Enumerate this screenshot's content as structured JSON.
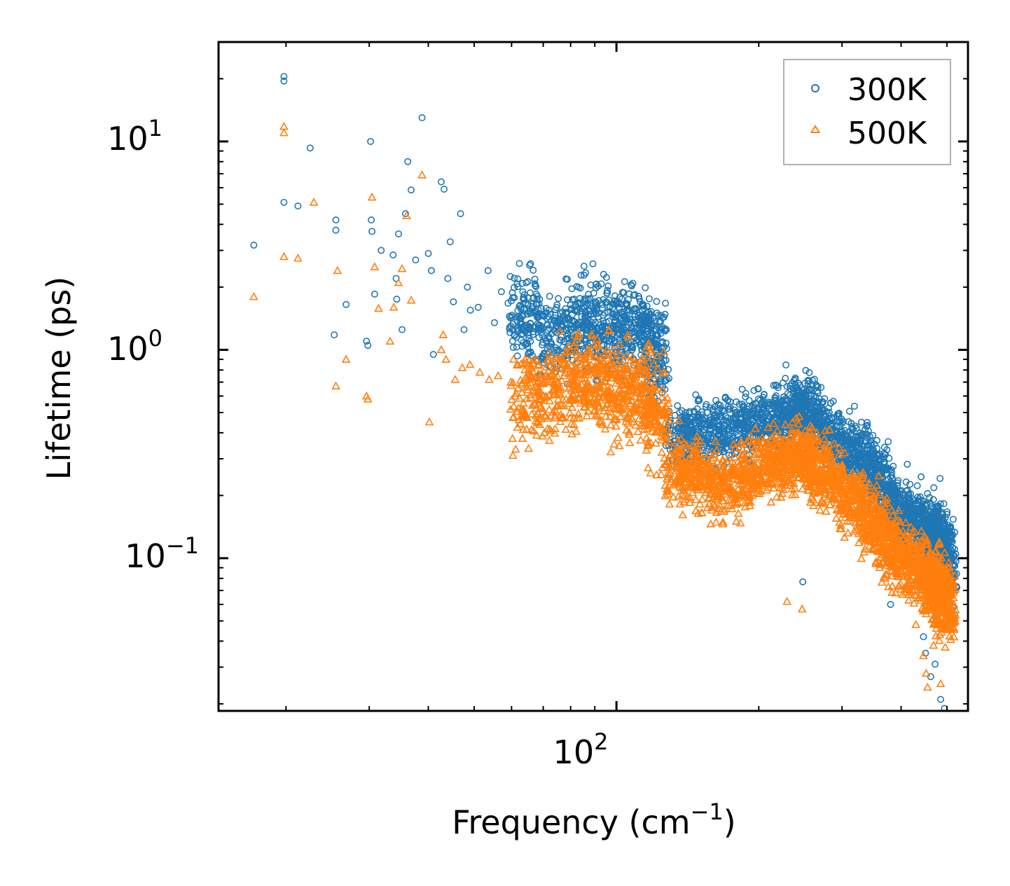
{
  "chart_data": {
    "type": "scatter",
    "xscale": "log",
    "yscale": "log",
    "xlabel": "Frequency (cm",
    "xlabel_sup": "−1",
    "xlabel_close": ")",
    "ylabel": "Lifetime (ps)",
    "xlim": [
      14.4,
      554
    ],
    "ylim": [
      0.0185,
      30
    ],
    "xtick_labels": [
      {
        "base": "10",
        "exp": "2",
        "value": 100
      }
    ],
    "ytick_labels": [
      {
        "base": "10",
        "exp": "1",
        "value": 10
      },
      {
        "base": "10",
        "exp": "0",
        "value": 1
      },
      {
        "base": "10",
        "exp": "−1",
        "value": 0.1
      }
    ],
    "legend": {
      "position": "top-right"
    },
    "series": [
      {
        "name": "300K",
        "color": "#1f77b4",
        "marker": "circle-open",
        "x": [
          17.1,
          19.8,
          19.8,
          19.8,
          21.2,
          22.5,
          25.3,
          25.5,
          25.5,
          26.8,
          29.6,
          29.8,
          30.2,
          30.3,
          30.4,
          30.8,
          31.8,
          33.7,
          34.2,
          34.3,
          34.6,
          35.2,
          35.8,
          36.2,
          36.8,
          37.6,
          38.8,
          40.0,
          40.6,
          41.0,
          42.6,
          43.2,
          44.0,
          44.5,
          45.2,
          46.8,
          47.6,
          48.4,
          49.1,
          51.0,
          53.5,
          55.2,
          57.1,
          59.4,
          62.3,
          65.0,
          68.3,
          73.0,
          78.4,
          82.6,
          86.1,
          90.4,
          94.6,
          99.2,
          103.5,
          108.0,
          113.6,
          118.2,
          120.8,
          122.1,
          134.5,
          142.6,
          151.0,
          160.2,
          170.4,
          182.0,
          194.3,
          205.1,
          216.2,
          226.8,
          238.4,
          246.1,
          252.5,
          260.3,
          271.4,
          284.3,
          298.6,
          313.1,
          327.4,
          340.2,
          352.1,
          365.0,
          378.4,
          390.2,
          402.5,
          418.2,
          432.1,
          446.3,
          458.0,
          466.2,
          472.0,
          478.5,
          484.0,
          487.5,
          491.0,
          493.8,
          496.0
        ],
        "y": [
          3.18,
          20.5,
          19.5,
          5.1,
          4.9,
          9.3,
          1.18,
          4.2,
          3.75,
          1.65,
          1.1,
          1.05,
          10.0,
          4.2,
          3.7,
          1.85,
          3.0,
          2.85,
          2.2,
          1.75,
          3.6,
          1.25,
          4.5,
          8.0,
          5.85,
          2.7,
          13.0,
          2.9,
          2.4,
          0.95,
          6.4,
          5.9,
          2.2,
          3.3,
          1.7,
          4.5,
          1.25,
          2.0,
          1.55,
          1.6,
          2.4,
          1.35,
          1.9,
          1.45,
          1.62,
          1.78,
          1.48,
          1.32,
          1.42,
          1.55,
          1.35,
          1.62,
          1.5,
          1.38,
          1.45,
          1.55,
          1.4,
          1.3,
          1.25,
          0.92,
          0.42,
          0.45,
          0.47,
          0.46,
          0.48,
          0.49,
          0.51,
          0.52,
          0.53,
          0.55,
          0.58,
          0.62,
          0.63,
          0.55,
          0.5,
          0.44,
          0.41,
          0.39,
          0.37,
          0.33,
          0.3,
          0.26,
          0.22,
          0.2,
          0.19,
          0.18,
          0.17,
          0.16,
          0.155,
          0.15,
          0.145,
          0.14,
          0.135,
          0.13,
          0.12,
          0.105,
          0.09
        ],
        "outliers_x": [
          446.0,
          450.5,
          462.0,
          472.0,
          485.0,
          494.0,
          247.8,
          380.0
        ],
        "outliers_y": [
          0.042,
          0.035,
          0.027,
          0.031,
          0.021,
          0.019,
          0.077,
          0.06
        ]
      },
      {
        "name": "500K",
        "color": "#ff7f0e",
        "marker": "triangle-open",
        "x": [
          17.1,
          19.8,
          19.8,
          19.8,
          21.2,
          22.9,
          25.5,
          25.7,
          26.8,
          29.6,
          29.8,
          30.4,
          30.8,
          31.4,
          33.2,
          33.8,
          34.6,
          35.2,
          36.0,
          36.8,
          38.8,
          40.2,
          42.6,
          43.0,
          43.6,
          45.6,
          47.2,
          49.0,
          51.4,
          53.8,
          56.2,
          59.8,
          63.1,
          67.4,
          72.2,
          77.5,
          82.3,
          86.0,
          90.8,
          95.4,
          100.2,
          104.8,
          110.3,
          115.0,
          119.6,
          122.2,
          134.0,
          142.0,
          150.8,
          160.0,
          170.2,
          181.6,
          193.5,
          204.8,
          215.0,
          226.4,
          237.0,
          244.0,
          252.0,
          261.8,
          272.6,
          285.4,
          300.0,
          314.0,
          328.2,
          341.0,
          353.0,
          366.2,
          379.0,
          392.0,
          404.3,
          420.2,
          434.0,
          448.0,
          460.0,
          468.0,
          475.0,
          482.0,
          488.0,
          492.0,
          495.5
        ],
        "y": [
          1.8,
          11.8,
          11.0,
          2.8,
          2.75,
          5.1,
          0.67,
          2.4,
          0.9,
          0.6,
          0.58,
          5.4,
          2.5,
          1.58,
          1.1,
          1.6,
          2.1,
          2.45,
          4.4,
          1.73,
          6.9,
          0.45,
          1.0,
          1.18,
          0.9,
          0.72,
          0.82,
          0.85,
          0.78,
          0.72,
          0.75,
          0.7,
          0.68,
          0.66,
          0.72,
          0.75,
          0.82,
          0.78,
          0.8,
          0.76,
          0.74,
          0.72,
          0.7,
          0.68,
          0.66,
          0.5,
          0.3,
          0.3,
          0.29,
          0.27,
          0.26,
          0.28,
          0.3,
          0.32,
          0.33,
          0.34,
          0.35,
          0.36,
          0.36,
          0.32,
          0.3,
          0.28,
          0.25,
          0.22,
          0.2,
          0.18,
          0.17,
          0.15,
          0.13,
          0.12,
          0.115,
          0.11,
          0.1,
          0.095,
          0.09,
          0.088,
          0.085,
          0.082,
          0.078,
          0.072,
          0.062
        ],
        "outliers_x": [
          429.8,
          446.0,
          452.0,
          455.0,
          485.0,
          494.5,
          247.0,
          229.5
        ],
        "outliers_y": [
          0.048,
          0.034,
          0.028,
          0.024,
          0.025,
          0.018,
          0.057,
          0.062
        ]
      }
    ]
  }
}
